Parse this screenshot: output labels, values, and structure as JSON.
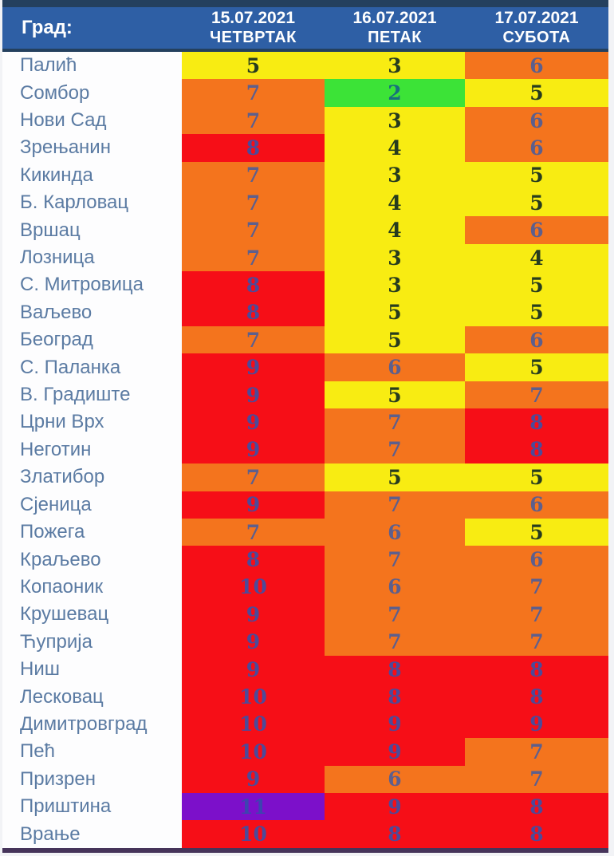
{
  "header": {
    "city_label": "Град:",
    "columns": [
      {
        "date": "15.07.2021",
        "day": "ЧЕТВРТАК"
      },
      {
        "date": "16.07.2021",
        "day": "ПЕТАК"
      },
      {
        "date": "17.07.2021",
        "day": "СУБОТА"
      }
    ]
  },
  "colors": {
    "header_bg": "#2e5fa5",
    "header_text": "#ffffff",
    "city_text": "#5b7ba3",
    "border_dark": "#24405e",
    "bottom_border": "#46345a",
    "levels": {
      "green": {
        "bg": "#3ce337",
        "text": "#17707d"
      },
      "yellow": {
        "bg": "#f8ec12",
        "text": "#273c1e"
      },
      "orange": {
        "bg": "#f4741d",
        "text": "#5d5f8d"
      },
      "red": {
        "bg": "#f60e17",
        "text": "#4d4a99"
      },
      "purple": {
        "bg": "#7c10ca",
        "text": "#3d44b0"
      }
    }
  },
  "chart_data": {
    "type": "table",
    "title": "",
    "columns": [
      "Град:",
      "15.07.2021 ЧЕТВРТАК",
      "16.07.2021 ПЕТАК",
      "17.07.2021 СУБОТА"
    ],
    "rows": [
      {
        "city": "Палић",
        "values": [
          5,
          3,
          6
        ],
        "levels": [
          "yellow",
          "yellow",
          "orange"
        ]
      },
      {
        "city": "Сомбор",
        "values": [
          7,
          2,
          5
        ],
        "levels": [
          "orange",
          "green",
          "yellow"
        ]
      },
      {
        "city": "Нови Сад",
        "values": [
          7,
          3,
          6
        ],
        "levels": [
          "orange",
          "yellow",
          "orange"
        ]
      },
      {
        "city": "Зрењанин",
        "values": [
          8,
          4,
          6
        ],
        "levels": [
          "red",
          "yellow",
          "orange"
        ]
      },
      {
        "city": "Кикинда",
        "values": [
          7,
          3,
          5
        ],
        "levels": [
          "orange",
          "yellow",
          "yellow"
        ]
      },
      {
        "city": "Б. Карловац",
        "values": [
          7,
          4,
          5
        ],
        "levels": [
          "orange",
          "yellow",
          "yellow"
        ]
      },
      {
        "city": "Вршац",
        "values": [
          7,
          4,
          6
        ],
        "levels": [
          "orange",
          "yellow",
          "orange"
        ]
      },
      {
        "city": "Лозница",
        "values": [
          7,
          3,
          4
        ],
        "levels": [
          "orange",
          "yellow",
          "yellow"
        ]
      },
      {
        "city": "С. Митровица",
        "values": [
          8,
          3,
          5
        ],
        "levels": [
          "red",
          "yellow",
          "yellow"
        ]
      },
      {
        "city": "Ваљево",
        "values": [
          8,
          5,
          5
        ],
        "levels": [
          "red",
          "yellow",
          "yellow"
        ]
      },
      {
        "city": "Београд",
        "values": [
          7,
          5,
          6
        ],
        "levels": [
          "orange",
          "yellow",
          "orange"
        ]
      },
      {
        "city": "С. Паланка",
        "values": [
          9,
          6,
          5
        ],
        "levels": [
          "red",
          "orange",
          "yellow"
        ]
      },
      {
        "city": "В. Градиште",
        "values": [
          9,
          5,
          7
        ],
        "levels": [
          "red",
          "yellow",
          "orange"
        ]
      },
      {
        "city": "Црни Врх",
        "values": [
          9,
          7,
          8
        ],
        "levels": [
          "red",
          "orange",
          "red"
        ]
      },
      {
        "city": "Неготин",
        "values": [
          9,
          7,
          8
        ],
        "levels": [
          "red",
          "orange",
          "red"
        ]
      },
      {
        "city": "Златибор",
        "values": [
          7,
          5,
          5
        ],
        "levels": [
          "orange",
          "yellow",
          "yellow"
        ]
      },
      {
        "city": "Сјеница",
        "values": [
          9,
          7,
          6
        ],
        "levels": [
          "red",
          "orange",
          "orange"
        ]
      },
      {
        "city": "Пожега",
        "values": [
          7,
          6,
          5
        ],
        "levels": [
          "orange",
          "orange",
          "yellow"
        ]
      },
      {
        "city": "Краљево",
        "values": [
          8,
          7,
          6
        ],
        "levels": [
          "red",
          "orange",
          "orange"
        ]
      },
      {
        "city": "Копаоник",
        "values": [
          10,
          6,
          7
        ],
        "levels": [
          "red",
          "orange",
          "orange"
        ]
      },
      {
        "city": "Крушевац",
        "values": [
          9,
          7,
          7
        ],
        "levels": [
          "red",
          "orange",
          "orange"
        ]
      },
      {
        "city": "Ћуприја",
        "values": [
          9,
          7,
          7
        ],
        "levels": [
          "red",
          "orange",
          "orange"
        ]
      },
      {
        "city": "Ниш",
        "values": [
          9,
          8,
          8
        ],
        "levels": [
          "red",
          "red",
          "red"
        ]
      },
      {
        "city": "Лесковац",
        "values": [
          10,
          8,
          8
        ],
        "levels": [
          "red",
          "red",
          "red"
        ]
      },
      {
        "city": "Димитровград",
        "values": [
          10,
          9,
          9
        ],
        "levels": [
          "red",
          "red",
          "red"
        ]
      },
      {
        "city": "Пећ",
        "values": [
          10,
          9,
          7
        ],
        "levels": [
          "red",
          "red",
          "orange"
        ]
      },
      {
        "city": "Призрен",
        "values": [
          9,
          6,
          7
        ],
        "levels": [
          "red",
          "orange",
          "orange"
        ]
      },
      {
        "city": "Приштина",
        "values": [
          11,
          9,
          8
        ],
        "levels": [
          "purple",
          "red",
          "red"
        ]
      },
      {
        "city": "Врање",
        "values": [
          10,
          8,
          8
        ],
        "levels": [
          "red",
          "red",
          "red"
        ]
      }
    ]
  }
}
